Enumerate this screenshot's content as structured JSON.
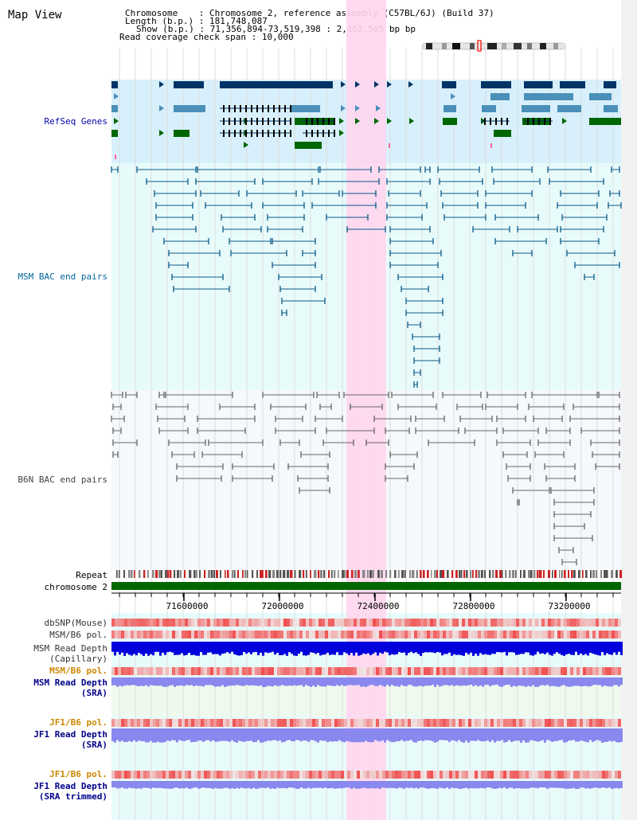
{
  "title": "Map View",
  "info": {
    "chromosome_label": "Chromosome",
    "chromosome_value": "Chromosome 2, reference assembly (C57BL/6J) (Build 37)",
    "length_label": "Length (b.p.)",
    "length_value": "181,748,087",
    "show_label": "Show (b.p.)",
    "show_value": "71,356,894-73,519,398 : 2,162,505 bp",
    "coverage_label": "Read coverage check span",
    "coverage_value": "10,000"
  },
  "tracks": {
    "refseq": "RefSeq Genes",
    "msm_bac": "MSM BAC end pairs",
    "b6n_bac": "B6N BAC end pairs",
    "repeat": "Repeat",
    "chromosome": "chromosome 2",
    "dbsnp": "dbSNP(Mouse)",
    "msm_b6_pol_1": "MSM/B6 pol.",
    "msm_depth_cap_1": "MSM Read Depth",
    "msm_depth_cap_2": "(Capillary)",
    "msm_b6_pol_2": "MSM/B6 pol.",
    "msm_depth_sra_1": "MSM Read Depth",
    "msm_depth_sra_2": "(SRA)",
    "jf1_b6_pol_1": "JF1/B6 pol.",
    "jf1_depth_sra_1": "JF1 Read Depth",
    "jf1_depth_sra_2": "(SRA)",
    "jf1_b6_pol_2": "JF1/B6 pol.",
    "jf1_depth_trim_1": "JF1 Read Depth",
    "jf1_depth_trim_2": "(SRA trimmed)"
  },
  "axis": {
    "ticks": [
      "71600000",
      "72000000",
      "72400000",
      "72800000",
      "73200000"
    ]
  },
  "colors": {
    "highlight": "#ffd6ee",
    "refseq_bg": "#d8f0fb",
    "bac_bg": "#e8fbfb",
    "gene_dark": "#003366",
    "gene_mid": "#4a90b8",
    "gene_green": "#006600",
    "chromosome_bar": "#006600",
    "snp": "#f08080",
    "depth": "#0000dd",
    "depth_light": "#8888ee"
  }
}
